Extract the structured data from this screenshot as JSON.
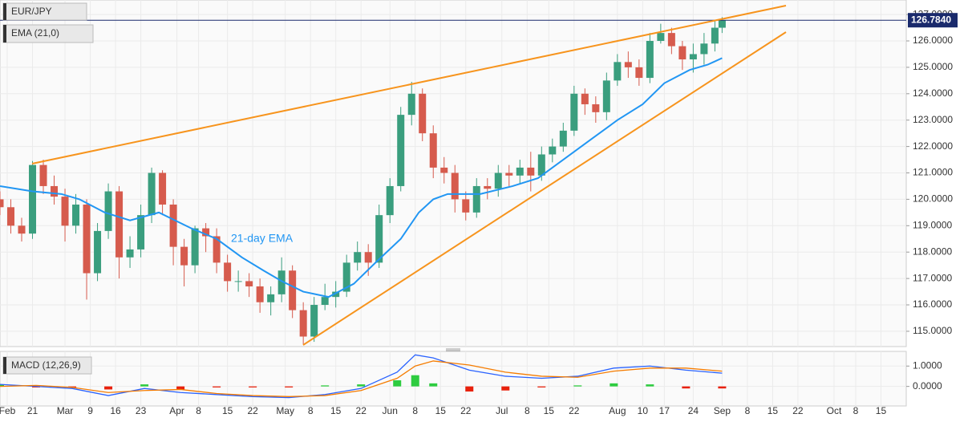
{
  "chart_data": [
    {
      "type": "candlestick",
      "title": "EUR/JPY",
      "ylim": [
        114.42,
        127.55
      ],
      "yticks": [
        {
          "value": 115,
          "label": "115.0000"
        },
        {
          "value": 116,
          "label": "116.0000"
        },
        {
          "value": 117,
          "label": "117.0000"
        },
        {
          "value": 118,
          "label": "118.0000"
        },
        {
          "value": 119,
          "label": "119.0000"
        },
        {
          "value": 120,
          "label": "120.0000"
        },
        {
          "value": 121,
          "label": "121.0000"
        },
        {
          "value": 122,
          "label": "122.0000"
        },
        {
          "value": 123,
          "label": "123.0000"
        },
        {
          "value": 124,
          "label": "124.0000"
        },
        {
          "value": 125,
          "label": "125.0000"
        },
        {
          "value": 126,
          "label": "126.0000"
        },
        {
          "value": 127,
          "label": "127.0000"
        }
      ],
      "xlim": [
        0,
        251
      ],
      "xticks": [
        {
          "value": 2,
          "label": "Feb"
        },
        {
          "value": 9,
          "label": "21"
        },
        {
          "value": 18,
          "label": "Mar"
        },
        {
          "value": 25,
          "label": "9"
        },
        {
          "value": 32,
          "label": "16"
        },
        {
          "value": 39,
          "label": "23"
        },
        {
          "value": 49,
          "label": "Apr"
        },
        {
          "value": 55,
          "label": "8"
        },
        {
          "value": 63,
          "label": "15"
        },
        {
          "value": 70,
          "label": "22"
        },
        {
          "value": 79,
          "label": "May"
        },
        {
          "value": 86,
          "label": "8"
        },
        {
          "value": 93,
          "label": "15"
        },
        {
          "value": 100,
          "label": "22"
        },
        {
          "value": 108,
          "label": "Jun"
        },
        {
          "value": 115,
          "label": "8"
        },
        {
          "value": 122,
          "label": "15"
        },
        {
          "value": 129,
          "label": "22"
        },
        {
          "value": 139,
          "label": "Jul"
        },
        {
          "value": 146,
          "label": "8"
        },
        {
          "value": 152,
          "label": "15"
        },
        {
          "value": 159,
          "label": "22"
        },
        {
          "value": 171,
          "label": "Aug"
        },
        {
          "value": 178,
          "label": "10"
        },
        {
          "value": 184,
          "label": "17"
        },
        {
          "value": 192,
          "label": "24"
        },
        {
          "value": 200,
          "label": "Sep"
        },
        {
          "value": 207,
          "label": "8"
        },
        {
          "value": 214,
          "label": "15"
        },
        {
          "value": 221,
          "label": "22"
        },
        {
          "value": 231,
          "label": "Oct"
        },
        {
          "value": 237,
          "label": "8"
        },
        {
          "value": 244,
          "label": "15"
        }
      ],
      "grid": true,
      "up_color": "#3a9e7e",
      "down_color": "#d65b4d",
      "candles": {
        "x": [
          0,
          3,
          6,
          9,
          12,
          15,
          18,
          21,
          24,
          27,
          30,
          33,
          36,
          39,
          42,
          45,
          48,
          51,
          54,
          57,
          60,
          63,
          66,
          69,
          72,
          75,
          78,
          81,
          84,
          87,
          90,
          93,
          96,
          99,
          102,
          105,
          108,
          111,
          114,
          117,
          120,
          123,
          126,
          129,
          132,
          135,
          138,
          141,
          144,
          147,
          150,
          153,
          156,
          159,
          162,
          165,
          168,
          171,
          174,
          177,
          180,
          183,
          186,
          189,
          192,
          195,
          198,
          200
        ],
        "open": [
          120.0,
          119.7,
          119.0,
          118.7,
          121.3,
          120.5,
          120.1,
          119.0,
          119.8,
          117.2,
          118.8,
          120.3,
          117.8,
          118.1,
          119.4,
          121.0,
          119.8,
          118.2,
          117.5,
          118.9,
          118.6,
          117.6,
          116.9,
          116.9,
          116.7,
          116.1,
          116.4,
          117.3,
          115.8,
          114.8,
          116.0,
          116.3,
          116.5,
          117.6,
          118.0,
          117.6,
          119.4,
          120.5,
          123.2,
          124.0,
          122.5,
          121.2,
          121.0,
          120.0,
          119.5,
          120.5,
          120.4,
          121.0,
          120.9,
          121.2,
          120.9,
          121.7,
          122.0,
          122.6,
          124.0,
          123.6,
          123.3,
          124.5,
          125.2,
          125.0,
          124.6,
          126.0,
          126.3,
          125.8,
          125.3,
          125.5,
          125.9,
          126.5
        ],
        "high": [
          120.3,
          120.0,
          119.3,
          121.45,
          121.5,
          120.9,
          120.4,
          120.2,
          120.0,
          119.1,
          120.6,
          120.5,
          118.6,
          119.8,
          121.2,
          121.1,
          120.0,
          118.5,
          119.0,
          119.1,
          118.9,
          117.9,
          117.3,
          117.2,
          117.0,
          116.7,
          117.8,
          117.5,
          116.1,
          116.3,
          116.8,
          116.9,
          117.9,
          118.4,
          118.3,
          119.8,
          120.8,
          123.5,
          124.45,
          124.2,
          122.8,
          121.6,
          121.3,
          120.3,
          120.8,
          120.8,
          121.3,
          121.3,
          121.5,
          121.8,
          122.0,
          122.3,
          122.9,
          124.3,
          124.2,
          123.9,
          124.8,
          125.5,
          125.6,
          125.3,
          126.3,
          126.65,
          126.5,
          126.0,
          125.9,
          126.3,
          126.8,
          126.9
        ],
        "low": [
          119.4,
          118.7,
          118.4,
          118.5,
          120.2,
          119.8,
          118.4,
          118.7,
          116.2,
          116.9,
          118.5,
          117.0,
          117.4,
          117.8,
          119.1,
          119.4,
          117.5,
          116.7,
          117.2,
          118.0,
          117.2,
          116.5,
          116.5,
          116.3,
          115.7,
          115.6,
          116.1,
          115.5,
          114.5,
          114.6,
          115.8,
          115.9,
          116.3,
          117.3,
          117.1,
          117.4,
          119.1,
          120.3,
          122.8,
          122.2,
          120.8,
          120.6,
          119.5,
          119.2,
          119.3,
          120.0,
          120.1,
          120.5,
          120.6,
          120.3,
          120.7,
          121.4,
          121.8,
          122.4,
          123.2,
          122.9,
          123.0,
          124.3,
          124.6,
          124.3,
          124.4,
          125.9,
          125.5,
          124.9,
          124.8,
          125.1,
          125.6,
          126.3
        ],
        "close": [
          119.7,
          119.0,
          118.7,
          121.3,
          120.5,
          120.1,
          119.0,
          119.8,
          117.2,
          118.8,
          120.3,
          117.8,
          118.1,
          119.4,
          121.0,
          119.8,
          118.2,
          117.5,
          118.9,
          118.6,
          117.6,
          116.9,
          116.9,
          116.7,
          116.1,
          116.4,
          117.3,
          115.8,
          114.8,
          116.0,
          116.3,
          116.5,
          117.6,
          118.0,
          117.6,
          119.4,
          120.5,
          123.2,
          124.0,
          122.5,
          121.2,
          121.0,
          120.0,
          119.5,
          120.5,
          120.4,
          121.0,
          120.9,
          121.2,
          120.9,
          121.7,
          122.0,
          122.6,
          124.0,
          123.6,
          123.3,
          124.5,
          125.2,
          125.0,
          124.6,
          126.0,
          126.3,
          125.8,
          125.3,
          125.5,
          125.9,
          126.5,
          126.78
        ]
      },
      "series": [
        {
          "name": "EMA (21,0)",
          "color": "#2196f3",
          "x": [
            0,
            9,
            17,
            22,
            29,
            36,
            44,
            53,
            60,
            67,
            73,
            78,
            84,
            91,
            98,
            104,
            111,
            116,
            120,
            124,
            133,
            142,
            149,
            156,
            164,
            171,
            178,
            184,
            191,
            196,
            200
          ],
          "values": [
            120.5,
            120.3,
            120.2,
            120.0,
            119.5,
            119.2,
            119.5,
            118.9,
            118.5,
            117.8,
            117.3,
            116.9,
            116.5,
            116.3,
            116.8,
            117.6,
            118.5,
            119.5,
            120.0,
            120.2,
            120.2,
            120.5,
            120.8,
            121.5,
            122.3,
            123.0,
            123.6,
            124.4,
            124.9,
            125.1,
            125.35
          ]
        }
      ],
      "annotation": "21-day EMA",
      "last_price": {
        "value": 126.784,
        "label": "126.7840"
      }
    },
    {
      "type": "macd",
      "title": "MACD (12,26,9)",
      "ylim": [
        -0.96,
        1.72
      ],
      "yticks": [
        {
          "value": 0,
          "label": "0.0000"
        },
        {
          "value": 1,
          "label": "1.0000"
        }
      ],
      "xlim": [
        0,
        251
      ],
      "x": [
        0,
        10,
        20,
        30,
        40,
        50,
        60,
        70,
        80,
        90,
        100,
        110,
        115,
        120,
        130,
        140,
        150,
        160,
        170,
        180,
        190,
        200
      ],
      "series": [
        {
          "color": "#2962ff",
          "values": [
            0.1,
            0.0,
            -0.1,
            -0.45,
            -0.1,
            -0.3,
            -0.4,
            -0.5,
            -0.55,
            -0.4,
            -0.1,
            0.7,
            1.55,
            1.4,
            0.8,
            0.5,
            0.4,
            0.5,
            0.9,
            1.0,
            0.8,
            0.65
          ]
        },
        {
          "color": "#f57c00",
          "values": [
            0.0,
            0.05,
            -0.05,
            -0.3,
            -0.2,
            -0.15,
            -0.35,
            -0.45,
            -0.5,
            -0.45,
            -0.2,
            0.4,
            1.0,
            1.25,
            1.05,
            0.7,
            0.5,
            0.45,
            0.75,
            0.9,
            0.9,
            0.75
          ]
        }
      ],
      "histogram": {
        "up_color": "#2ecc40",
        "down_color": "#e8210c",
        "values": [
          0.1,
          -0.05,
          -0.05,
          -0.15,
          0.1,
          -0.15,
          -0.05,
          -0.05,
          -0.05,
          0.05,
          0.1,
          0.3,
          0.55,
          0.15,
          -0.25,
          -0.2,
          -0.05,
          0.05,
          0.15,
          0.1,
          -0.1,
          -0.1
        ]
      }
    }
  ]
}
